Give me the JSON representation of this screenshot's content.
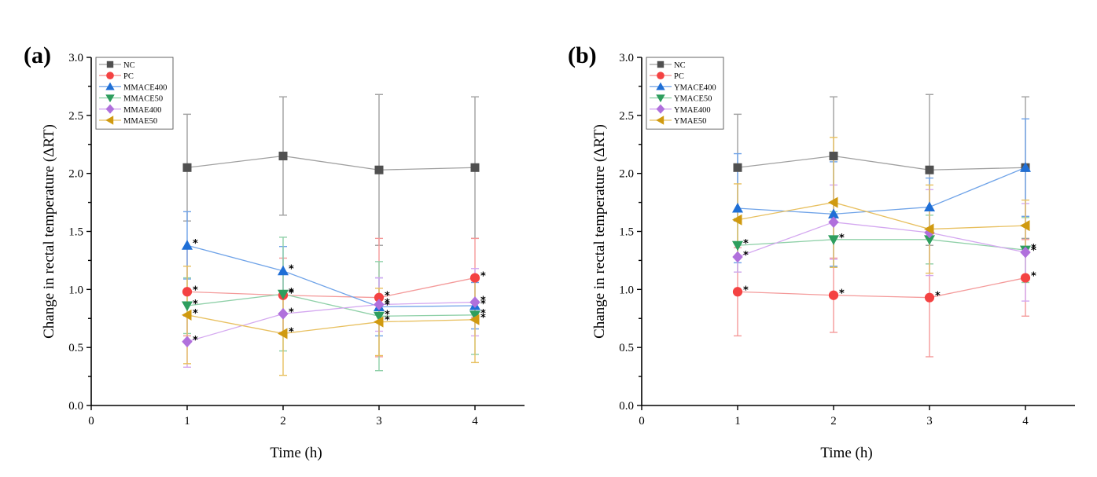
{
  "chart_data": [
    {
      "type": "line",
      "panel_label": "(a)",
      "title": "",
      "xlabel": "Time (h)",
      "ylabel": "Change in rectal temperature (ΔRT)",
      "xlim": [
        0,
        4.52
      ],
      "ylim": [
        0,
        3.0
      ],
      "xticks": [
        "0",
        "1",
        "2",
        "3",
        "4"
      ],
      "yticks": [
        "0.0",
        "0.5",
        "1.0",
        "1.5",
        "2.0",
        "2.5",
        "3.0"
      ],
      "grid": false,
      "legend_position": "top-left",
      "x": [
        1,
        2,
        3,
        4
      ],
      "series": [
        {
          "name": "NC",
          "marker": "square",
          "color": "#505050",
          "line_color": "#a0a0a0",
          "values": [
            2.05,
            2.15,
            2.03,
            2.05
          ],
          "errors": [
            0.46,
            0.51,
            0.65,
            0.61
          ],
          "significant": [
            false,
            false,
            false,
            false
          ]
        },
        {
          "name": "PC",
          "marker": "circle",
          "color": "#f44242",
          "line_color": "#f49a9a",
          "values": [
            0.98,
            0.95,
            0.93,
            1.1
          ],
          "errors": [
            0.38,
            0.32,
            0.51,
            0.34
          ],
          "significant": [
            true,
            true,
            true,
            true
          ]
        },
        {
          "name": "MMACE400",
          "marker": "triangle-up",
          "color": "#1f6fd6",
          "line_color": "#6fa3e8",
          "values": [
            1.38,
            1.16,
            0.85,
            0.86
          ],
          "errors": [
            0.29,
            0.21,
            0.25,
            0.2
          ],
          "significant": [
            true,
            true,
            true,
            true
          ]
        },
        {
          "name": "MMACE50",
          "marker": "triangle-down",
          "color": "#2e9e5e",
          "line_color": "#8fd0a8",
          "values": [
            0.86,
            0.96,
            0.77,
            0.78
          ],
          "errors": [
            0.24,
            0.49,
            0.47,
            0.34
          ],
          "significant": [
            true,
            true,
            true,
            true
          ]
        },
        {
          "name": "MMAE400",
          "marker": "diamond",
          "color": "#b070dc",
          "line_color": "#d4a8f0",
          "values": [
            0.55,
            0.79,
            0.87,
            0.89
          ],
          "errors": [
            0.22,
            0.17,
            0.23,
            0.29
          ],
          "significant": [
            true,
            true,
            true,
            true
          ]
        },
        {
          "name": "MMAE50",
          "marker": "triangle-left",
          "color": "#d09a10",
          "line_color": "#e8c060",
          "values": [
            0.78,
            0.62,
            0.72,
            0.74
          ],
          "errors": [
            0.42,
            0.36,
            0.29,
            0.37
          ],
          "significant": [
            true,
            true,
            true,
            true
          ]
        }
      ]
    },
    {
      "type": "line",
      "panel_label": "(b)",
      "title": "",
      "xlabel": "Time (h)",
      "ylabel": "Change in rectal temperature (ΔRT)",
      "xlim": [
        0,
        4.52
      ],
      "ylim": [
        0,
        3.0
      ],
      "xticks": [
        "0",
        "1",
        "2",
        "3",
        "4"
      ],
      "yticks": [
        "0.0",
        "0.5",
        "1.0",
        "1.5",
        "2.0",
        "2.5",
        "3.0"
      ],
      "grid": false,
      "legend_position": "top-left",
      "x": [
        1,
        2,
        3,
        4
      ],
      "series": [
        {
          "name": "NC",
          "marker": "square",
          "color": "#505050",
          "line_color": "#a0a0a0",
          "values": [
            2.05,
            2.15,
            2.03,
            2.05
          ],
          "errors": [
            0.46,
            0.51,
            0.65,
            0.61
          ],
          "significant": [
            false,
            false,
            false,
            false
          ]
        },
        {
          "name": "PC",
          "marker": "circle",
          "color": "#f44242",
          "line_color": "#f49a9a",
          "values": [
            0.98,
            0.95,
            0.93,
            1.1
          ],
          "errors": [
            0.38,
            0.32,
            0.51,
            0.33
          ],
          "significant": [
            true,
            true,
            true,
            true
          ]
        },
        {
          "name": "YMACE400",
          "marker": "triangle-up",
          "color": "#1f6fd6",
          "line_color": "#6fa3e8",
          "values": [
            1.7,
            1.65,
            1.71,
            2.05
          ],
          "errors": [
            0.47,
            0.45,
            0.25,
            0.42
          ],
          "significant": [
            false,
            false,
            false,
            false
          ]
        },
        {
          "name": "YMACE50",
          "marker": "triangle-down",
          "color": "#2e9e5e",
          "line_color": "#8fd0a8",
          "values": [
            1.38,
            1.43,
            1.43,
            1.34
          ],
          "errors": [
            0.23,
            0.24,
            0.21,
            0.28
          ],
          "significant": [
            true,
            true,
            false,
            true
          ]
        },
        {
          "name": "YMAE400",
          "marker": "diamond",
          "color": "#b070dc",
          "line_color": "#d4a8f0",
          "values": [
            1.28,
            1.58,
            1.49,
            1.32
          ],
          "errors": [
            0.13,
            0.32,
            0.37,
            0.42
          ],
          "significant": [
            true,
            false,
            false,
            true
          ]
        },
        {
          "name": "YMAE50",
          "marker": "triangle-left",
          "color": "#d09a10",
          "line_color": "#e8c060",
          "values": [
            1.6,
            1.75,
            1.52,
            1.55
          ],
          "errors": [
            0.31,
            0.56,
            0.38,
            0.22
          ],
          "significant": [
            false,
            false,
            false,
            false
          ]
        }
      ]
    }
  ]
}
